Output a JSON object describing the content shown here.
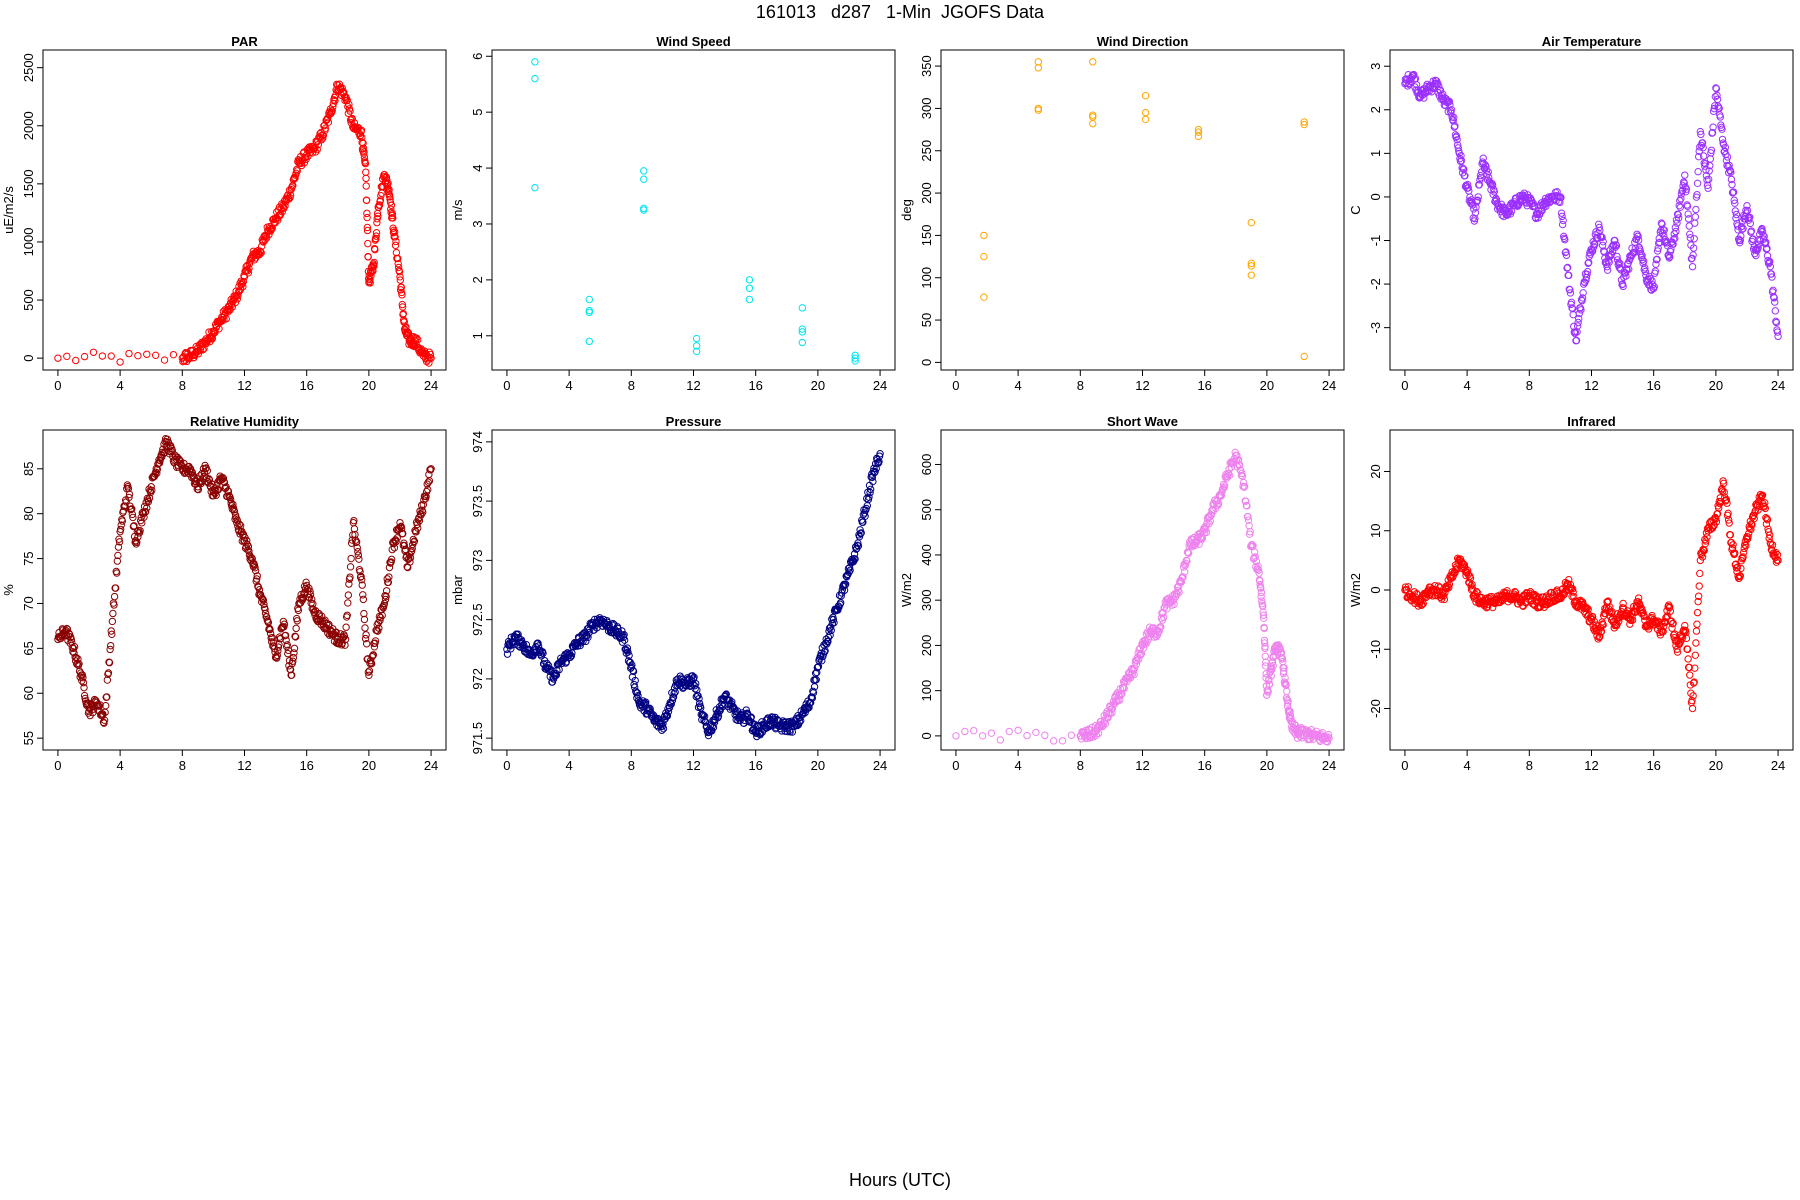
{
  "page_title": "161013   d287   1-Min  JGOFS Data",
  "x_axis_caption": "Hours (UTC)",
  "chart_data": [
    {
      "type": "scatter",
      "title": "PAR",
      "ylabel": "uE/m2/s",
      "color": "#ff0000",
      "xlim": [
        0,
        24
      ],
      "ylim": [
        0,
        2550
      ],
      "xticks": [
        0,
        4,
        8,
        12,
        16,
        20,
        24
      ],
      "yticks": [
        0,
        500,
        1000,
        1500,
        2000,
        2500
      ],
      "x": [
        0,
        8,
        8.5,
        9,
        9.5,
        10,
        10.5,
        11,
        11.5,
        12,
        12.5,
        13,
        13.5,
        14,
        14.5,
        15,
        15.5,
        16,
        16.5,
        17,
        17.5,
        18,
        18.5,
        19,
        19.5,
        19.8,
        20,
        20.3,
        20.6,
        21,
        21.3,
        21.6,
        22,
        22.3,
        22.6,
        23,
        23.5,
        24
      ],
      "y": [
        0,
        0,
        20,
        60,
        140,
        230,
        330,
        420,
        540,
        700,
        870,
        920,
        1100,
        1200,
        1300,
        1450,
        1680,
        1750,
        1800,
        1920,
        2100,
        2350,
        2250,
        1980,
        1950,
        1600,
        650,
        800,
        1300,
        1580,
        1450,
        1100,
        700,
        250,
        150,
        150,
        20,
        0
      ]
    },
    {
      "type": "scatter",
      "title": "Wind Speed",
      "ylabel": "m/s",
      "color": "#00e5ee",
      "xlim": [
        0,
        24
      ],
      "ylim": [
        0.6,
        5.9
      ],
      "xticks": [
        0,
        4,
        8,
        12,
        16,
        20,
        24
      ],
      "yticks": [
        1,
        2,
        3,
        4,
        5,
        6
      ],
      "x": [
        1.8,
        1.8,
        1.8,
        5.3,
        5.3,
        5.3,
        5.3,
        8.8,
        8.8,
        8.8,
        8.8,
        12.2,
        12.2,
        12.2,
        15.6,
        15.6,
        15.6,
        19,
        19,
        19,
        19,
        22.4,
        22.4,
        22.4
      ],
      "y": [
        5.9,
        5.6,
        3.65,
        1.65,
        1.45,
        1.42,
        0.9,
        3.95,
        3.8,
        3.28,
        3.25,
        0.95,
        0.82,
        0.72,
        2.0,
        1.85,
        1.65,
        1.5,
        1.12,
        1.07,
        0.88,
        0.65,
        0.6,
        0.55
      ]
    },
    {
      "type": "scatter",
      "title": "Wind Direction",
      "ylabel": "deg",
      "color": "#ffa500",
      "xlim": [
        0,
        24
      ],
      "ylim": [
        5,
        355
      ],
      "xticks": [
        0,
        4,
        8,
        12,
        16,
        20,
        24
      ],
      "yticks": [
        0,
        50,
        100,
        150,
        200,
        250,
        300,
        350
      ],
      "x": [
        1.8,
        1.8,
        1.8,
        5.3,
        5.3,
        5.3,
        5.3,
        8.8,
        8.8,
        8.8,
        8.8,
        12.2,
        12.2,
        12.2,
        15.6,
        15.6,
        15.6,
        19,
        19,
        19,
        19,
        22.4,
        22.4,
        22.4
      ],
      "y": [
        150,
        125,
        77,
        355,
        348,
        300,
        298,
        355,
        292,
        290,
        282,
        315,
        295,
        287,
        275,
        272,
        267,
        165,
        117,
        114,
        103,
        284,
        281,
        7
      ]
    },
    {
      "type": "scatter",
      "title": "Air Temperature",
      "ylabel": "C",
      "color": "#9b30ff",
      "xlim": [
        0,
        24
      ],
      "ylim": [
        -3.7,
        3.1
      ],
      "xticks": [
        0,
        4,
        8,
        12,
        16,
        20,
        24
      ],
      "yticks": [
        -3,
        -2,
        -1,
        0,
        1,
        2,
        3
      ],
      "x": [
        0,
        0.5,
        1,
        1.5,
        2,
        2.5,
        3,
        3.5,
        4,
        4.5,
        5,
        5.5,
        6,
        6.5,
        7,
        7.5,
        8,
        8.5,
        9,
        9.5,
        10,
        10.5,
        11,
        11.5,
        12,
        12.5,
        13,
        13.5,
        14,
        14.5,
        15,
        15.5,
        16,
        16.5,
        17,
        17.5,
        18,
        18.5,
        19,
        19.5,
        20,
        20.5,
        21,
        21.5,
        22,
        22.5,
        23,
        23.5,
        24
      ],
      "y": [
        2.6,
        2.8,
        2.3,
        2.5,
        2.6,
        2.2,
        2.0,
        1.0,
        0.2,
        -0.5,
        0.8,
        0.3,
        -0.2,
        -0.4,
        -0.2,
        0,
        -0.1,
        -0.4,
        -0.1,
        0,
        0,
        -1.8,
        -3.3,
        -2.0,
        -1.2,
        -0.7,
        -1.6,
        -1.0,
        -2.0,
        -1.4,
        -0.9,
        -1.8,
        -2.1,
        -0.6,
        -1.4,
        -0.6,
        0.5,
        -1.6,
        1.5,
        0.2,
        2.5,
        1.2,
        0.4,
        -1.0,
        -0.2,
        -1.3,
        -0.8,
        -1.6,
        -3.2
      ]
    },
    {
      "type": "scatter",
      "title": "Relative Humidity",
      "ylabel": "%",
      "color": "#8b0000",
      "xlim": [
        0,
        24
      ],
      "ylim": [
        55,
        88
      ],
      "xticks": [
        0,
        4,
        8,
        12,
        16,
        20,
        24
      ],
      "yticks": [
        55,
        60,
        65,
        70,
        75,
        80,
        85
      ],
      "x": [
        0,
        0.5,
        1,
        1.5,
        2,
        2.5,
        3,
        3.5,
        4,
        4.5,
        5,
        5.5,
        6,
        6.5,
        7,
        7.5,
        8,
        8.5,
        9,
        9.5,
        10,
        10.5,
        11,
        11.5,
        12,
        12.5,
        13,
        13.5,
        14,
        14.5,
        15,
        15.5,
        16,
        16.5,
        17,
        17.5,
        18,
        18.5,
        19,
        19.5,
        20,
        20.5,
        21,
        21.5,
        22,
        22.5,
        23,
        23.5,
        24
      ],
      "y": [
        66,
        67,
        65,
        62,
        58,
        59,
        57,
        68,
        78,
        83,
        77,
        80,
        83,
        86,
        88,
        86,
        85,
        85,
        83,
        85,
        82,
        84,
        82,
        79,
        77,
        75,
        71,
        68,
        64,
        68,
        62,
        70,
        72,
        69,
        68,
        67,
        66,
        66,
        79,
        73,
        62,
        67,
        70,
        76,
        79,
        74,
        78,
        81,
        85
      ]
    },
    {
      "type": "scatter",
      "title": "Pressure",
      "ylabel": "mbar",
      "color": "#000080",
      "xlim": [
        0,
        24
      ],
      "ylim": [
        971.5,
        974.0
      ],
      "xticks": [
        0,
        4,
        8,
        12,
        16,
        20,
        24
      ],
      "yticks": [
        971.5,
        972.0,
        972.5,
        973.0,
        973.5,
        974.0
      ],
      "x": [
        0,
        0.5,
        1,
        1.5,
        2,
        2.5,
        3,
        3.5,
        4,
        4.5,
        5,
        5.5,
        6,
        6.5,
        7,
        7.5,
        8,
        8.5,
        9,
        9.5,
        10,
        10.5,
        11,
        11.5,
        12,
        12.5,
        13,
        13.5,
        14,
        14.5,
        15,
        15.5,
        16,
        16.5,
        17,
        17.5,
        18,
        18.5,
        19,
        19.5,
        20,
        20.5,
        21,
        21.5,
        22,
        22.5,
        23,
        23.5,
        24
      ],
      "y": [
        972.25,
        972.35,
        972.3,
        972.2,
        972.3,
        972.1,
        972.0,
        972.15,
        972.2,
        972.3,
        972.35,
        972.45,
        972.5,
        972.45,
        972.4,
        972.35,
        972.1,
        971.8,
        971.75,
        971.65,
        971.6,
        971.8,
        972.0,
        971.95,
        972.0,
        971.7,
        971.55,
        971.7,
        971.85,
        971.75,
        971.65,
        971.7,
        971.55,
        971.6,
        971.65,
        971.6,
        971.6,
        971.6,
        971.7,
        971.8,
        972.1,
        972.3,
        972.5,
        972.7,
        972.9,
        973.1,
        973.4,
        973.7,
        973.9
      ]
    },
    {
      "type": "scatter",
      "title": "Short Wave",
      "ylabel": "W/m2",
      "color": "#ee82ee",
      "xlim": [
        0,
        24
      ],
      "ylim": [
        -5,
        650
      ],
      "xticks": [
        0,
        4,
        8,
        12,
        16,
        20,
        24
      ],
      "yticks": [
        0,
        100,
        200,
        300,
        400,
        500,
        600
      ],
      "x": [
        0,
        8,
        8.5,
        9,
        9.5,
        10,
        10.5,
        11,
        11.5,
        12,
        12.5,
        13,
        13.5,
        14,
        14.5,
        15,
        15.5,
        16,
        16.5,
        17,
        17.5,
        18,
        18.5,
        19,
        19.5,
        19.8,
        20,
        20.3,
        20.6,
        21,
        21.3,
        21.6,
        22,
        22.5,
        23,
        23.5,
        24
      ],
      "y": [
        0,
        0,
        2,
        10,
        30,
        60,
        90,
        120,
        150,
        200,
        230,
        230,
        290,
        300,
        340,
        420,
        430,
        450,
        500,
        530,
        580,
        620,
        560,
        420,
        360,
        260,
        90,
        150,
        200,
        170,
        80,
        20,
        5,
        5,
        0,
        -3,
        -5
      ]
    },
    {
      "type": "scatter",
      "title": "Infrared",
      "ylabel": "W/m2",
      "color": "#ff0000",
      "xlim": [
        0,
        24
      ],
      "ylim": [
        -25,
        25
      ],
      "xticks": [
        0,
        4,
        8,
        12,
        16,
        20,
        24
      ],
      "yticks": [
        -20,
        -10,
        0,
        10,
        20
      ],
      "x": [
        0,
        0.5,
        1,
        1.5,
        2,
        2.5,
        3,
        3.5,
        4,
        4.5,
        5,
        5.5,
        6,
        6.5,
        7,
        7.5,
        8,
        8.5,
        9,
        9.5,
        10,
        10.5,
        11,
        11.5,
        12,
        12.5,
        13,
        13.5,
        14,
        14.5,
        15,
        15.5,
        16,
        16.5,
        17,
        17.5,
        18,
        18.5,
        19,
        19.5,
        20,
        20.5,
        21,
        21.5,
        22,
        22.5,
        23,
        23.5,
        24
      ],
      "y": [
        0,
        -1,
        -2,
        0,
        0,
        -1,
        2,
        5,
        3,
        -1,
        -2,
        -2,
        -2,
        -1,
        -1,
        -2,
        -1,
        -2,
        -2,
        -1,
        -1,
        1,
        -2,
        -3,
        -5,
        -8,
        -2,
        -6,
        -3,
        -5,
        -2,
        -6,
        -5,
        -7,
        -3,
        -10,
        -6,
        -20,
        5,
        10,
        12,
        18,
        8,
        2,
        9,
        13,
        16,
        8,
        5
      ]
    }
  ]
}
